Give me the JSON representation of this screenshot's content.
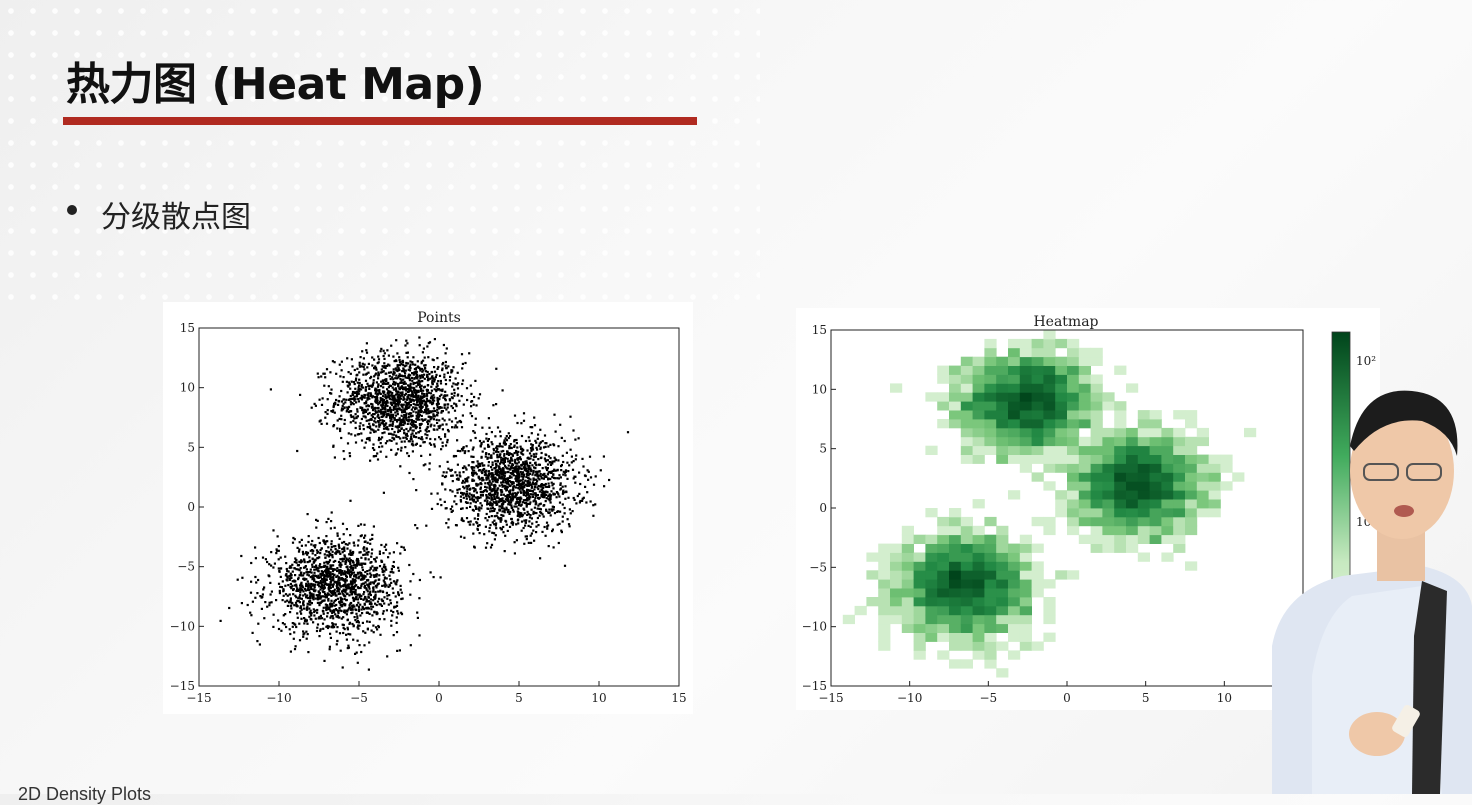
{
  "slide": {
    "title": "热力图 (Heat Map)",
    "bullet": "分级散点图",
    "footer": "2D Density Plots",
    "colors": {
      "title_rule": "#b02a20",
      "points": "#000000",
      "heat_max": "#00441b"
    }
  },
  "chart_data": [
    {
      "type": "scatter",
      "title": "Points",
      "xlabel": "",
      "ylabel": "",
      "xlim": [
        -15,
        15
      ],
      "ylim": [
        -15,
        15
      ],
      "xticks": [
        -15,
        -10,
        -5,
        0,
        5,
        10,
        15
      ],
      "yticks": [
        -15,
        -10,
        -5,
        0,
        5,
        10,
        15
      ],
      "grid": false,
      "clusters": [
        {
          "center": [
            -2.5,
            9
          ],
          "spread": 2.0
        },
        {
          "center": [
            4.5,
            2
          ],
          "spread": 2.0
        },
        {
          "center": [
            -6.5,
            -6.5
          ],
          "spread": 2.0
        }
      ]
    },
    {
      "type": "heatmap",
      "title": "Heatmap",
      "xlabel": "",
      "ylabel": "",
      "xlim": [
        -15,
        15
      ],
      "ylim": [
        -15,
        15
      ],
      "xticks": [
        -15,
        -10,
        -5,
        0,
        5,
        10
      ],
      "yticks": [
        -15,
        -10,
        -5,
        0,
        5,
        10,
        15
      ],
      "color_scale": "log",
      "colorbar_ticks": [
        "10¹",
        "10²"
      ],
      "clusters": [
        {
          "center": [
            -2.5,
            9
          ],
          "spread": 2.0
        },
        {
          "center": [
            4.5,
            2
          ],
          "spread": 2.0
        },
        {
          "center": [
            -6.5,
            -6.5
          ],
          "spread": 2.0
        }
      ]
    }
  ]
}
